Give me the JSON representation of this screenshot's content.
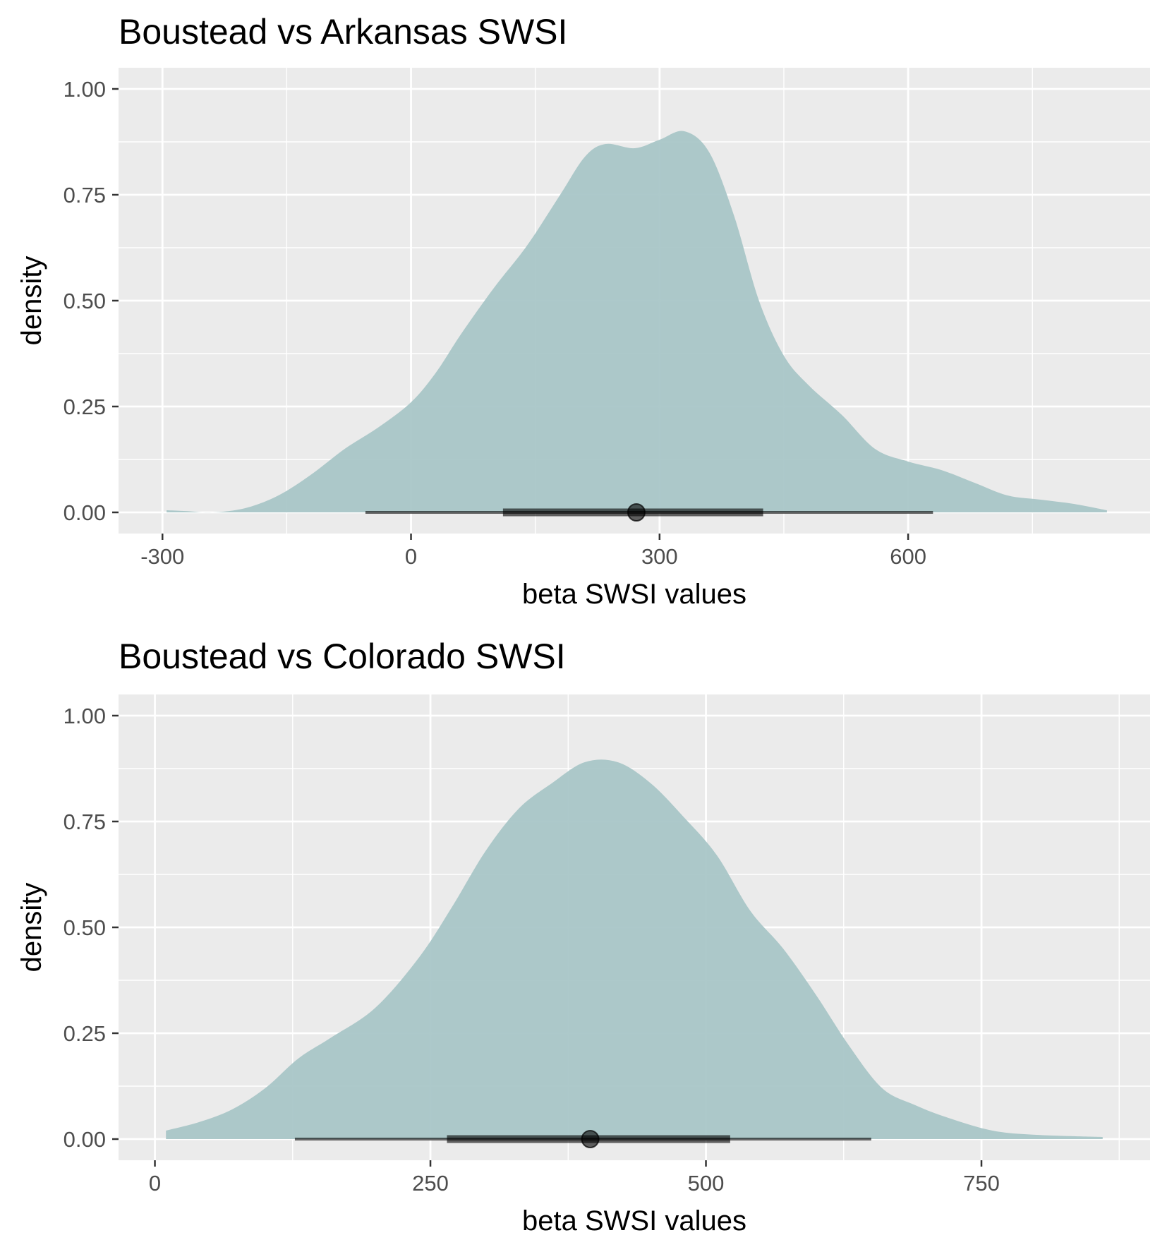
{
  "colors": {
    "panel_bg": "#ebebeb",
    "grid": "#ffffff",
    "density_fill": "#a6c4c6",
    "interval": "#000000",
    "tick_text": "#4d4d4d"
  },
  "chart_data": [
    {
      "type": "area",
      "title": "Boustead vs Arkansas SWSI",
      "xlabel": "beta SWSI values",
      "ylabel": "density",
      "xlim": [
        -353,
        892
      ],
      "ylim": [
        -0.05,
        1.05
      ],
      "x_ticks": [
        -300,
        0,
        300,
        600
      ],
      "x_tick_labels": [
        "-300",
        "0",
        "300",
        "600"
      ],
      "y_ticks": [
        0,
        0.25,
        0.5,
        0.75,
        1
      ],
      "y_tick_labels": [
        "0.00",
        "0.25",
        "0.50",
        "0.75",
        "1.00"
      ],
      "grid": true,
      "series": [
        {
          "x": [
            -295,
            -270,
            -240,
            -200,
            -160,
            -120,
            -80,
            -40,
            0,
            30,
            60,
            100,
            140,
            180,
            210,
            235,
            270,
            300,
            330,
            360,
            390,
            420,
            450,
            480,
            520,
            560,
            600,
            640,
            680,
            720,
            760,
            800,
            840
          ],
          "y": [
            0.005,
            0.003,
            0.0,
            0.01,
            0.04,
            0.09,
            0.15,
            0.2,
            0.26,
            0.33,
            0.42,
            0.53,
            0.63,
            0.75,
            0.84,
            0.87,
            0.86,
            0.88,
            0.9,
            0.85,
            0.7,
            0.5,
            0.37,
            0.3,
            0.23,
            0.15,
            0.12,
            0.1,
            0.07,
            0.04,
            0.03,
            0.02,
            0.005
          ]
        }
      ],
      "interval": {
        "point": 272,
        "inner": [
          111,
          425
        ],
        "outer": [
          -55,
          630
        ]
      }
    },
    {
      "type": "area",
      "title": "Boustead vs Colorado SWSI",
      "xlabel": "beta SWSI values",
      "ylabel": "density",
      "xlim": [
        -33,
        903
      ],
      "ylim": [
        -0.05,
        1.05
      ],
      "x_ticks": [
        0,
        250,
        500,
        750
      ],
      "x_tick_labels": [
        "0",
        "250",
        "500",
        "750"
      ],
      "y_ticks": [
        0,
        0.25,
        0.5,
        0.75,
        1
      ],
      "y_tick_labels": [
        "0.00",
        "0.25",
        "0.50",
        "0.75",
        "1.00"
      ],
      "grid": true,
      "series": [
        {
          "x": [
            10,
            40,
            70,
            100,
            130,
            160,
            200,
            240,
            270,
            300,
            330,
            360,
            390,
            420,
            450,
            480,
            510,
            540,
            570,
            600,
            630,
            660,
            690,
            720,
            760,
            800,
            860
          ],
          "y": [
            0.02,
            0.04,
            0.07,
            0.12,
            0.19,
            0.24,
            0.31,
            0.43,
            0.55,
            0.68,
            0.78,
            0.84,
            0.89,
            0.89,
            0.84,
            0.76,
            0.67,
            0.54,
            0.45,
            0.34,
            0.22,
            0.12,
            0.08,
            0.05,
            0.02,
            0.01,
            0.005
          ]
        }
      ],
      "interval": {
        "point": 395,
        "inner": [
          265,
          522
        ],
        "outer": [
          127,
          650
        ]
      }
    }
  ]
}
